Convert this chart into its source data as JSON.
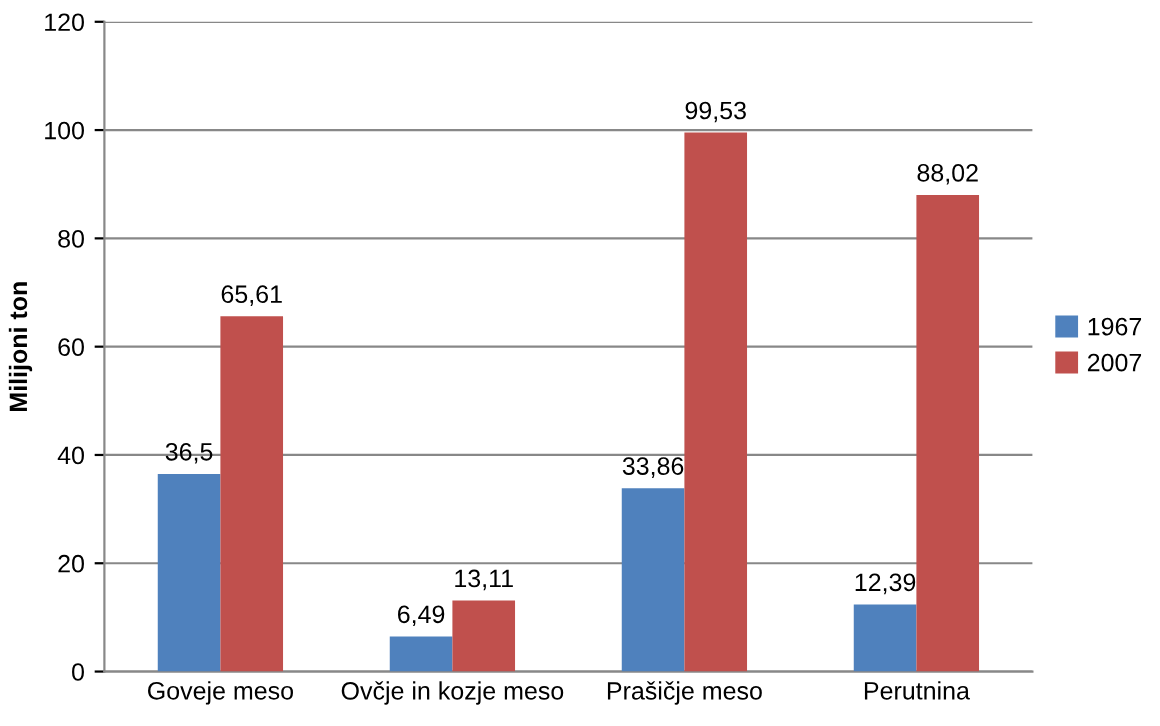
{
  "chart_data": {
    "type": "bar",
    "ylabel": "Milijoni ton",
    "categories": [
      "Goveje meso",
      "Ovčje in kozje meso",
      "Prašičje meso",
      "Perutnina"
    ],
    "series": [
      {
        "name": "1967",
        "color": "#4f81bd",
        "values": [
          36.5,
          6.49,
          33.86,
          12.39
        ],
        "value_labels": [
          "36,5",
          "6,49",
          "33,86",
          "12,39"
        ]
      },
      {
        "name": "2007",
        "color": "#c0504d",
        "values": [
          65.61,
          13.11,
          99.53,
          88.02
        ],
        "value_labels": [
          "65,61",
          "13,11",
          "99,53",
          "88,02"
        ]
      }
    ],
    "ylim": [
      0,
      120
    ],
    "yticks": [
      0,
      20,
      40,
      60,
      80,
      100,
      120
    ],
    "grid": "y",
    "legend": "right"
  }
}
